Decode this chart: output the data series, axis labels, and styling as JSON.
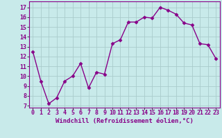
{
  "x": [
    0,
    1,
    2,
    3,
    4,
    5,
    6,
    7,
    8,
    9,
    10,
    11,
    12,
    13,
    14,
    15,
    16,
    17,
    18,
    19,
    20,
    21,
    22,
    23
  ],
  "y": [
    12.5,
    9.5,
    7.2,
    7.8,
    9.5,
    10.0,
    11.3,
    8.8,
    10.4,
    10.2,
    13.3,
    13.7,
    15.5,
    15.5,
    16.0,
    15.9,
    17.0,
    16.7,
    16.3,
    15.4,
    15.2,
    13.3,
    13.2,
    11.8
  ],
  "line_color": "#880088",
  "marker": "D",
  "markersize": 2.5,
  "linewidth": 1.0,
  "background_color": "#c8eaea",
  "grid_color": "#aacccc",
  "xlabel": "Windchill (Refroidissement éolien,°C)",
  "xlabel_fontsize": 6.5,
  "tick_fontsize": 6,
  "ylim": [
    6.8,
    17.6
  ],
  "yticks": [
    7,
    8,
    9,
    10,
    11,
    12,
    13,
    14,
    15,
    16,
    17
  ],
  "xticks": [
    0,
    1,
    2,
    3,
    4,
    5,
    6,
    7,
    8,
    9,
    10,
    11,
    12,
    13,
    14,
    15,
    16,
    17,
    18,
    19,
    20,
    21,
    22,
    23
  ],
  "xlim": [
    -0.5,
    23.5
  ],
  "spine_color": "#880088"
}
